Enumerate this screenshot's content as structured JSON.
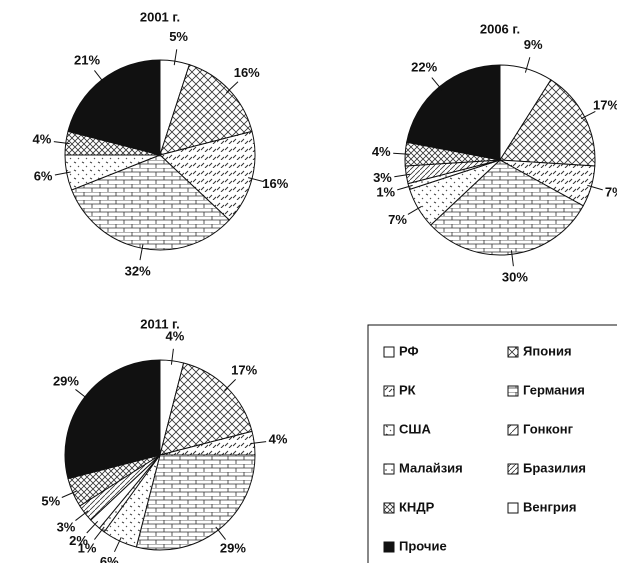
{
  "legend": [
    "РФ",
    "Япония",
    "РК",
    "Германия",
    "США",
    "Гонконг",
    "Малайзия",
    "Бразилия",
    "КНДР",
    "Венгрия",
    "Прочие"
  ],
  "chart_data": [
    {
      "type": "pie",
      "title": "2001 г.",
      "categories": [
        "РФ",
        "Япония",
        "РК",
        "Германия",
        "США",
        "КНДР",
        "Прочие"
      ],
      "values": [
        5,
        16,
        16,
        32,
        6,
        4,
        21
      ],
      "value_labels": [
        "5%",
        "16%",
        "16%",
        "32%",
        "6%",
        "4%",
        "21%"
      ]
    },
    {
      "type": "pie",
      "title": "2006 г.",
      "categories": [
        "РФ",
        "Япония",
        "РК",
        "Германия",
        "США",
        "Малайзия",
        "Бразилия",
        "КНДР",
        "Прочие"
      ],
      "values": [
        9,
        17,
        7,
        30,
        7,
        1,
        3,
        4,
        22
      ],
      "value_labels": [
        "9%",
        "17%",
        "7%",
        "30%",
        "7%",
        "1%",
        "3%",
        "4%",
        "22%"
      ]
    },
    {
      "type": "pie",
      "title": "2011 г.",
      "categories": [
        "РФ",
        "Япония",
        "РК",
        "Германия",
        "США",
        "Малайзия",
        "Венгрия",
        "Бразилия",
        "КНДР",
        "Прочие"
      ],
      "values": [
        4,
        17,
        4,
        29,
        6,
        1,
        2,
        3,
        5,
        29
      ],
      "value_labels": [
        "4%",
        "17%",
        "4%",
        "29%",
        "6%",
        "1%",
        "2%",
        "3%",
        "5%",
        "29%"
      ]
    }
  ]
}
